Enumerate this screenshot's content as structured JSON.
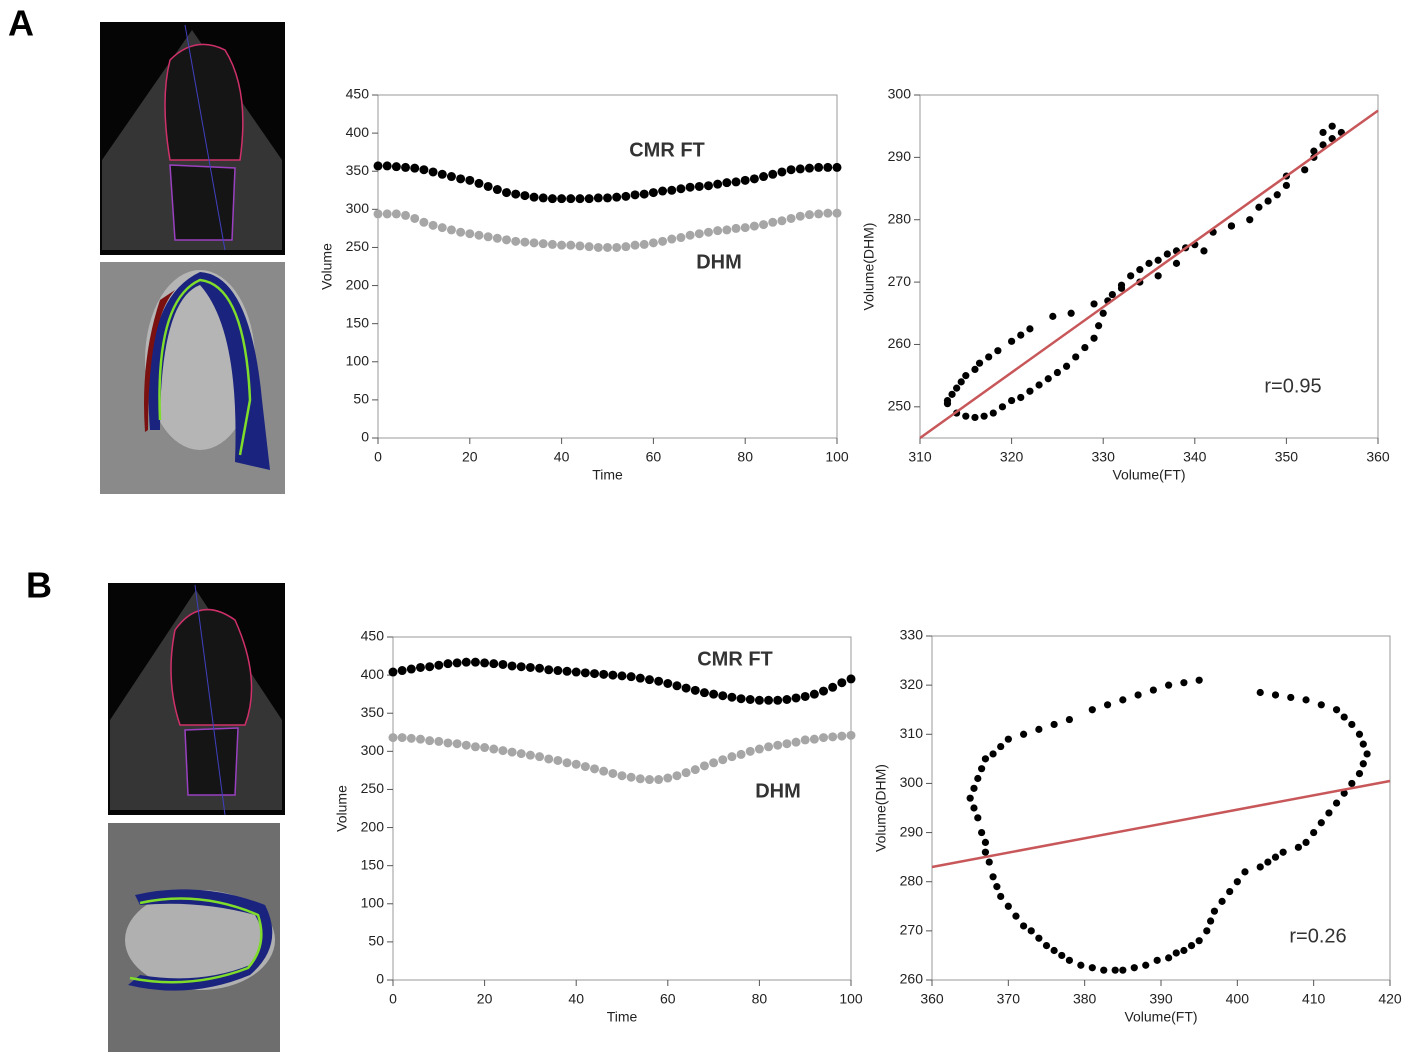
{
  "panel_labels": [
    "A",
    "B"
  ],
  "chart_data": [
    {
      "type": "line",
      "xlabel": "Time",
      "ylabel": "Volume",
      "xlim": [
        0,
        100
      ],
      "ylim": [
        0,
        450
      ],
      "xticks": [
        0,
        20,
        40,
        60,
        80,
        100
      ],
      "yticks": [
        0,
        50,
        100,
        150,
        200,
        250,
        300,
        350,
        400,
        450
      ],
      "x": [
        0,
        2,
        4,
        6,
        8,
        10,
        12,
        14,
        16,
        18,
        20,
        22,
        24,
        26,
        28,
        30,
        32,
        34,
        36,
        38,
        40,
        42,
        44,
        46,
        48,
        50,
        52,
        54,
        56,
        58,
        60,
        62,
        64,
        66,
        68,
        70,
        72,
        74,
        76,
        78,
        80,
        82,
        84,
        86,
        88,
        90,
        92,
        94,
        96,
        98,
        100
      ],
      "series": [
        {
          "name": "CMR FT",
          "color": "#000000",
          "values": [
            357,
            357,
            356,
            355,
            354,
            352,
            349,
            346,
            343,
            340,
            338,
            334,
            330,
            326,
            322,
            320,
            318,
            316,
            315,
            314,
            314,
            314,
            314,
            314,
            315,
            315,
            316,
            317,
            319,
            320,
            322,
            324,
            325,
            327,
            329,
            330,
            331,
            333,
            335,
            336,
            338,
            340,
            343,
            346,
            349,
            352,
            353,
            354,
            355,
            355,
            355
          ]
        },
        {
          "name": "DHM",
          "color": "#a6a6a6",
          "values": [
            294,
            294,
            294,
            292,
            288,
            283,
            279,
            276,
            273,
            270,
            268,
            266,
            264,
            262,
            260,
            258,
            257,
            256,
            255,
            254,
            253,
            253,
            252,
            251,
            250,
            250,
            250,
            251,
            253,
            254,
            256,
            258,
            261,
            263,
            266,
            268,
            270,
            272,
            273,
            275,
            276,
            278,
            280,
            283,
            285,
            288,
            291,
            293,
            294,
            295,
            295
          ]
        }
      ]
    },
    {
      "type": "scatter",
      "xlabel": "Volume(FT)",
      "ylabel": "Volume(DHM)",
      "annotation": "r=0.95",
      "xlim": [
        310,
        360
      ],
      "ylim": [
        245,
        300
      ],
      "xticks": [
        310,
        320,
        330,
        340,
        350,
        360
      ],
      "yticks": [
        250,
        260,
        270,
        280,
        290,
        300
      ],
      "color": "#000000",
      "x": [
        313,
        313.5,
        314,
        314.5,
        315,
        316,
        316.5,
        317.5,
        318.5,
        320,
        321,
        322,
        324.5,
        326.5,
        329,
        313,
        314,
        315,
        316,
        317,
        318,
        319,
        320,
        321,
        322,
        323,
        324,
        325,
        326,
        327,
        328,
        329,
        329.5,
        330,
        330.5,
        331,
        332,
        333,
        334,
        335,
        336,
        337,
        338,
        339,
        340,
        342,
        344,
        346,
        347,
        349,
        350,
        352,
        353,
        354,
        355,
        356,
        355,
        354,
        353,
        350,
        348,
        344,
        341,
        338,
        336,
        334,
        332
      ],
      "y": [
        251,
        252,
        253,
        254,
        255,
        256,
        257,
        258,
        259,
        260.5,
        261.5,
        262.5,
        264.5,
        265,
        266.5,
        250.5,
        249,
        248.5,
        248.3,
        248.5,
        249,
        250,
        251,
        251.5,
        252.5,
        253.5,
        254.5,
        255.5,
        256.5,
        258,
        259.5,
        261,
        263,
        265,
        267,
        268,
        269.5,
        271,
        272,
        273,
        273.5,
        274.5,
        275,
        275.5,
        276,
        278,
        279,
        280,
        282,
        284,
        285.5,
        288,
        290,
        292,
        293,
        294,
        295,
        294,
        291,
        287,
        283,
        279,
        275,
        273,
        271,
        270,
        269
      ],
      "fit": {
        "color": "#c8575a",
        "x": [
          310,
          360
        ],
        "y": [
          245,
          297.5
        ]
      }
    },
    {
      "type": "line",
      "xlabel": "Time",
      "ylabel": "Volume",
      "xlim": [
        0,
        100
      ],
      "ylim": [
        0,
        450
      ],
      "xticks": [
        0,
        20,
        40,
        60,
        80,
        100
      ],
      "yticks": [
        0,
        50,
        100,
        150,
        200,
        250,
        300,
        350,
        400,
        450
      ],
      "x": [
        0,
        2,
        4,
        6,
        8,
        10,
        12,
        14,
        16,
        18,
        20,
        22,
        24,
        26,
        28,
        30,
        32,
        34,
        36,
        38,
        40,
        42,
        44,
        46,
        48,
        50,
        52,
        54,
        56,
        58,
        60,
        62,
        64,
        66,
        68,
        70,
        72,
        74,
        76,
        78,
        80,
        82,
        84,
        86,
        88,
        90,
        92,
        94,
        96,
        98,
        100
      ],
      "series": [
        {
          "name": "CMR FT",
          "color": "#000000",
          "values": [
            404,
            406,
            408,
            410,
            411,
            413,
            415,
            416,
            417,
            417,
            416,
            415,
            414,
            412,
            411,
            410,
            409,
            407,
            406,
            405,
            404,
            403,
            402,
            401,
            400,
            399,
            398,
            396,
            394,
            392,
            389,
            386,
            383,
            380,
            377,
            375,
            373,
            371,
            369,
            368,
            367,
            367,
            367,
            368,
            370,
            372,
            375,
            379,
            384,
            390,
            395
          ]
        },
        {
          "name": "DHM",
          "color": "#a6a6a6",
          "values": [
            318,
            318,
            317,
            316,
            314,
            313,
            311,
            310,
            308,
            306,
            305,
            303,
            301,
            299,
            297,
            295,
            293,
            290,
            288,
            285,
            283,
            280,
            277,
            274,
            271,
            268,
            266,
            264,
            263,
            263,
            265,
            268,
            272,
            276,
            281,
            285,
            289,
            293,
            296,
            300,
            303,
            306,
            308,
            310,
            312,
            315,
            316,
            318,
            319,
            320,
            321
          ]
        }
      ]
    },
    {
      "type": "scatter",
      "xlabel": "Volume(FT)",
      "ylabel": "Volume(DHM)",
      "annotation": "r=0.26",
      "xlim": [
        360,
        420
      ],
      "ylim": [
        260,
        330
      ],
      "xticks": [
        360,
        370,
        380,
        390,
        400,
        410,
        420
      ],
      "yticks": [
        260,
        270,
        280,
        290,
        300,
        310,
        320,
        330
      ],
      "color": "#000000",
      "x": [
        395,
        393,
        391,
        389,
        387,
        385,
        383,
        381,
        378,
        376,
        374,
        372,
        370,
        369,
        368,
        367,
        366.5,
        366,
        365.5,
        365,
        365.5,
        366,
        366.5,
        367,
        367,
        367.5,
        368,
        368.5,
        369,
        370,
        371,
        372,
        373,
        374,
        375,
        376,
        377,
        378,
        379.5,
        381,
        382.5,
        384,
        385,
        386.5,
        388,
        389.5,
        391,
        392,
        393,
        394,
        395,
        396,
        396.5,
        397,
        398,
        399,
        400,
        401,
        403,
        404,
        405,
        406,
        408,
        409,
        410,
        411,
        412,
        413,
        414,
        415,
        416,
        416.5,
        417,
        416.5,
        416,
        415,
        414,
        413,
        411,
        409,
        407,
        405,
        403
      ],
      "y": [
        321,
        320.5,
        320,
        319,
        318,
        317,
        316,
        315,
        313,
        312,
        311,
        310,
        309,
        307.5,
        306,
        305,
        303,
        301,
        299,
        297,
        295,
        293,
        290,
        288,
        286,
        284,
        281,
        279,
        277,
        275,
        273,
        271,
        270,
        268.5,
        267,
        266,
        265,
        264,
        263,
        262.5,
        262,
        262,
        262,
        262.5,
        263,
        264,
        264.5,
        265.5,
        266,
        267,
        268,
        270,
        272,
        274,
        276,
        278,
        280,
        282,
        283,
        284,
        285,
        286,
        287,
        288,
        290,
        292,
        294,
        296,
        298,
        300,
        302,
        304,
        306,
        308,
        310,
        312,
        313.5,
        315,
        316,
        317,
        317.5,
        318,
        318.5
      ],
      "fit": {
        "color": "#c8575a",
        "x": [
          360,
          420
        ],
        "y": [
          283,
          300.5
        ]
      }
    }
  ]
}
